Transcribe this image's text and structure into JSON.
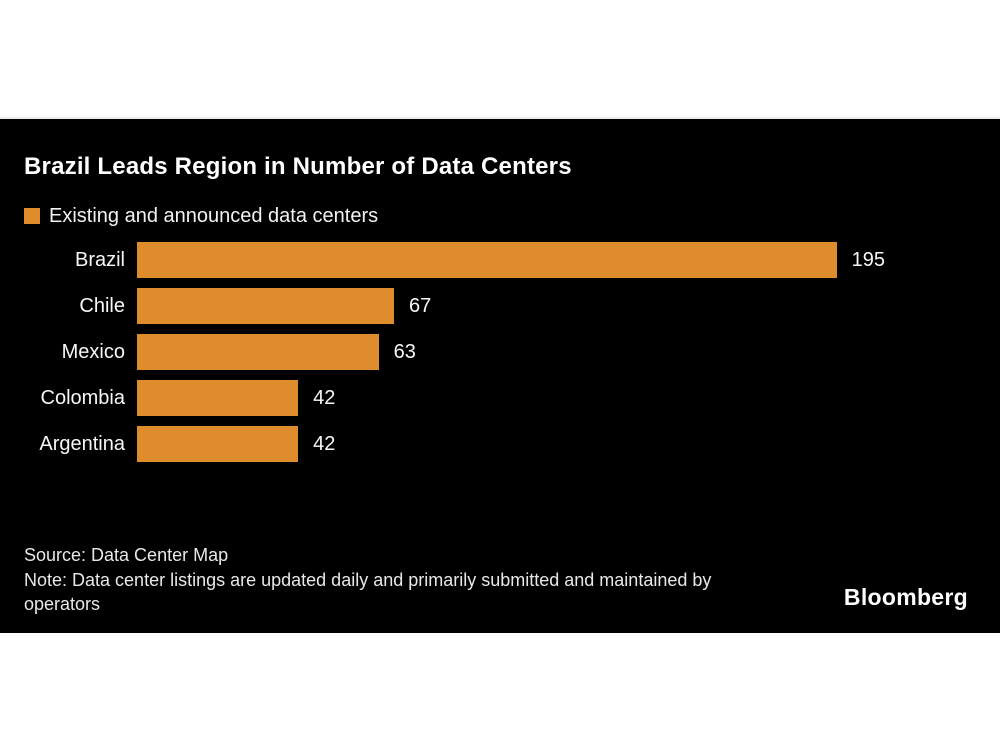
{
  "page": {
    "title": "Brazil Leads Region in Number of Data Centers",
    "legend_label": "Existing and announced data centers",
    "source": "Source: Data Center Map",
    "note": "Note: Data center listings are updated daily and primarily submitted and maintained by operators",
    "brand": "Bloomberg"
  },
  "colors": {
    "page_bg": "#FFFFFF",
    "panel_bg": "#000000",
    "bar": "#DF8C2D",
    "title_text": "#FFFFFF",
    "label_text": "#F7F7F7",
    "note_text": "#E8E8E8"
  },
  "chart_data": {
    "type": "bar",
    "orientation": "horizontal",
    "title": "Brazil Leads Region in Number of Data Centers",
    "legend": [
      "Existing and announced data centers"
    ],
    "legend_position": "top-left",
    "categories": [
      "Brazil",
      "Chile",
      "Mexico",
      "Colombia",
      "Argentina"
    ],
    "values": [
      195,
      67,
      63,
      42,
      42
    ],
    "xlim": [
      0,
      195
    ],
    "grid": false,
    "value_labels_shown": true,
    "bar_color": "#DF8C2D",
    "source": "Source: Data Center Map",
    "note": "Note: Data center listings are updated daily and primarily submitted and maintained by operators"
  }
}
